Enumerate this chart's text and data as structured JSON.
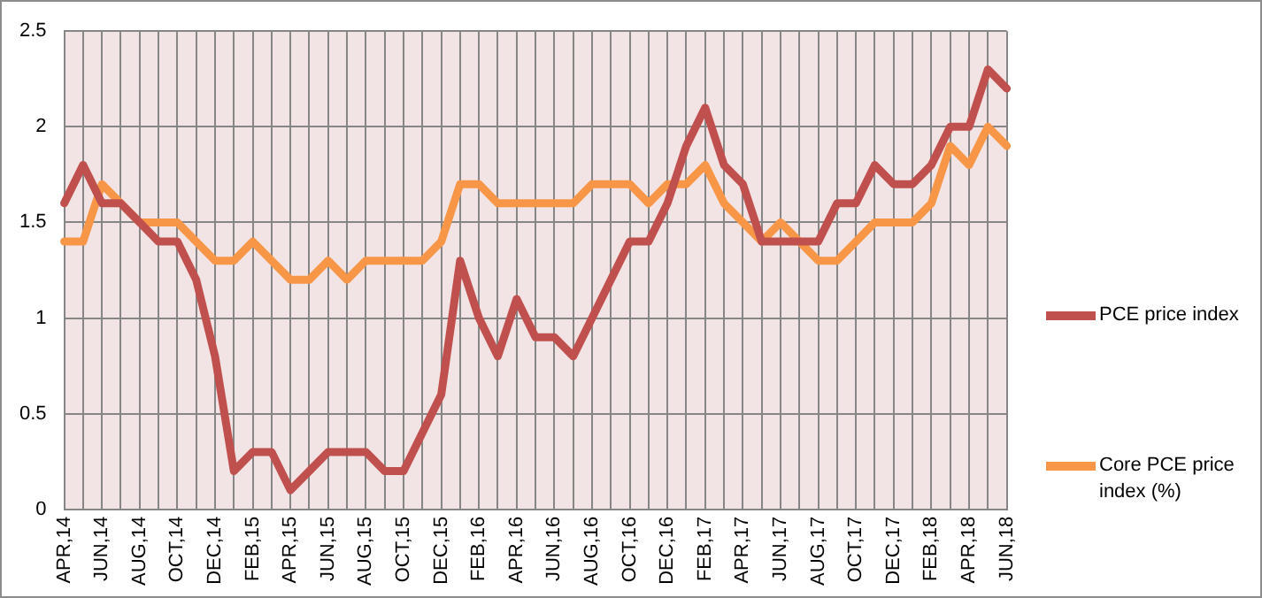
{
  "chart_data": {
    "type": "line",
    "categories": [
      "APR,14",
      null,
      "JUN,14",
      null,
      "AUG,14",
      null,
      "OCT,14",
      null,
      "DEC,14",
      null,
      "FEB,15",
      null,
      "APR,15",
      null,
      "JUN,15",
      null,
      "AUG,15",
      null,
      "OCT,15",
      null,
      "DEC,15",
      null,
      "FEB,16",
      null,
      "APR,16",
      null,
      "JUN,16",
      null,
      "AUG,16",
      null,
      "OCT,16",
      null,
      "DEC,16",
      null,
      "FEB,17",
      null,
      "APR,17",
      null,
      "JUN,17",
      null,
      "AUG,17",
      null,
      "OCT,17",
      null,
      "DEC,17",
      null,
      "FEB,18",
      null,
      "APR,18",
      null,
      "JUN,18"
    ],
    "series": [
      {
        "name": "PCE price index",
        "color": "#c0504d",
        "values": [
          1.6,
          1.8,
          1.6,
          1.6,
          1.5,
          1.4,
          1.4,
          1.2,
          0.8,
          0.2,
          0.3,
          0.3,
          0.1,
          0.2,
          0.3,
          0.3,
          0.3,
          0.2,
          0.2,
          0.4,
          0.6,
          1.3,
          1.0,
          0.8,
          1.1,
          0.9,
          0.9,
          0.8,
          1.0,
          1.2,
          1.4,
          1.4,
          1.6,
          1.9,
          2.1,
          1.8,
          1.7,
          1.4,
          1.4,
          1.4,
          1.4,
          1.6,
          1.6,
          1.8,
          1.7,
          1.7,
          1.8,
          2.0,
          2.0,
          2.3,
          2.2
        ]
      },
      {
        "name": "Core PCE price index (%)",
        "color": "#f79646",
        "values": [
          1.4,
          1.4,
          1.7,
          1.6,
          1.5,
          1.5,
          1.5,
          1.4,
          1.3,
          1.3,
          1.4,
          1.3,
          1.2,
          1.2,
          1.3,
          1.2,
          1.3,
          1.3,
          1.3,
          1.3,
          1.4,
          1.7,
          1.7,
          1.6,
          1.6,
          1.6,
          1.6,
          1.6,
          1.7,
          1.7,
          1.7,
          1.6,
          1.7,
          1.7,
          1.8,
          1.6,
          1.5,
          1.4,
          1.5,
          1.4,
          1.3,
          1.3,
          1.4,
          1.5,
          1.5,
          1.5,
          1.6,
          1.9,
          1.8,
          2.0,
          1.9
        ]
      }
    ],
    "ylim": [
      0,
      2.5
    ],
    "yticks": [
      0,
      0.5,
      1,
      1.5,
      2,
      2.5
    ],
    "grid": true,
    "legend": "right",
    "marker": "none",
    "line_style": "solid"
  }
}
